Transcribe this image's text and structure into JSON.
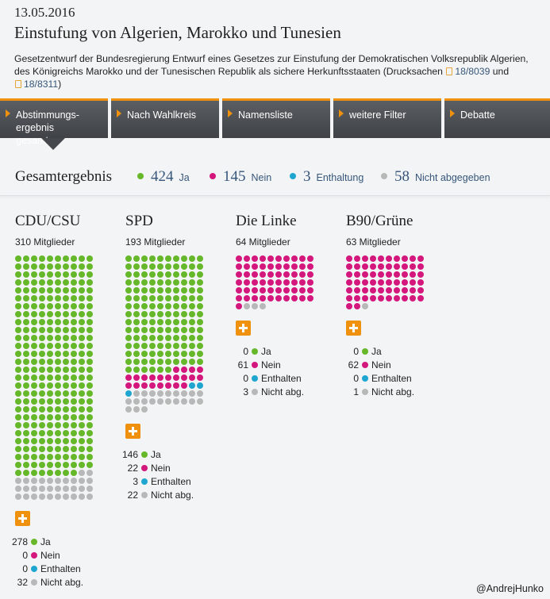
{
  "date": "13.05.2016",
  "title": "Einstufung von Algerien, Marokko und Tunesien",
  "description": {
    "text": "Gesetzentwurf der Bundesregierung Entwurf eines Gesetzes zur Einstufung der Demokratischen Volksrepublik Algerien, des Königreichs Marokko und der Tunesischen Republik als sichere Herkunftsstaaten (Drucksachen",
    "doc1": "18/8039",
    "and": "und",
    "doc2": "18/8311",
    "close": ")"
  },
  "tabs": [
    {
      "label": "Abstimmungs-ergebnis gesamt"
    },
    {
      "label": "Nach Wahlkreis"
    },
    {
      "label": "Namensliste"
    },
    {
      "label": "weitere Filter"
    },
    {
      "label": "Debatte"
    }
  ],
  "colors": {
    "yes": "#66b82a",
    "no": "#d4177d",
    "abstain": "#1ea6d0",
    "absent": "#b8b8b8",
    "accent": "#f0910e"
  },
  "summary": {
    "title": "Gesamtergebnis",
    "yes": {
      "count": "424",
      "label": "Ja"
    },
    "no": {
      "count": "145",
      "label": "Nein"
    },
    "abstain": {
      "count": "3",
      "label": "Enthaltung"
    },
    "absent": {
      "count": "58",
      "label": "Nicht abgegeben"
    }
  },
  "parties": [
    {
      "name": "CDU/CSU",
      "members": "310 Mitglieder",
      "yes": 278,
      "no": 0,
      "abstain": 0,
      "absent": 32
    },
    {
      "name": "SPD",
      "members": "193 Mitglieder",
      "yes": 146,
      "no": 22,
      "abstain": 3,
      "absent": 22
    },
    {
      "name": "Die Linke",
      "members": "64 Mitglieder",
      "yes": 0,
      "no": 61,
      "abstain": 0,
      "absent": 3
    },
    {
      "name": "B90/Grüne",
      "members": "63 Mitglieder",
      "yes": 0,
      "no": 62,
      "abstain": 0,
      "absent": 1
    }
  ],
  "legend_labels": {
    "yes": "Ja",
    "no": "Nein",
    "abstain": "Enthalten",
    "absent": "Nicht abg."
  },
  "credit": "@AndrejHunko"
}
